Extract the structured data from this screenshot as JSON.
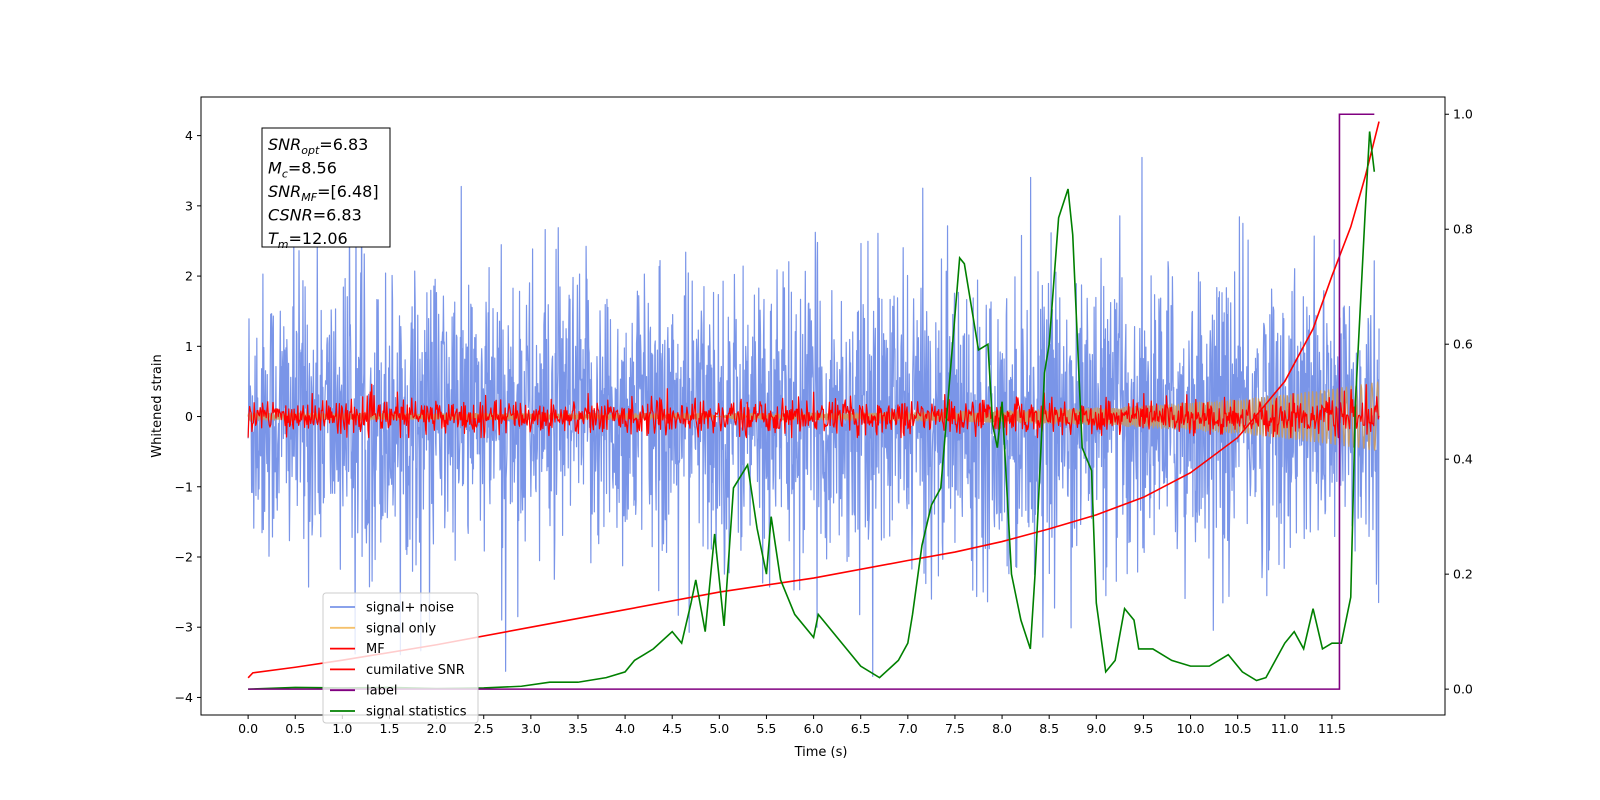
{
  "chart_data": {
    "type": "line",
    "xlabel": "Time (s)",
    "ylabel": "Whitened strain",
    "xlim": [
      -0.5,
      12.7
    ],
    "ylim": [
      -4.25,
      4.55
    ],
    "y2lim": [
      -0.045,
      1.03
    ],
    "grid": false,
    "legend_placement": "lower-left",
    "x_ticks": [
      "0.0",
      "0.5",
      "1.0",
      "1.5",
      "2.0",
      "2.5",
      "3.0",
      "3.5",
      "4.0",
      "4.5",
      "5.0",
      "5.5",
      "6.0",
      "6.5",
      "7.0",
      "7.5",
      "8.0",
      "8.5",
      "9.0",
      "9.5",
      "10.0",
      "10.5",
      "11.0",
      "11.5"
    ],
    "y_ticks": [
      "4",
      "3",
      "2",
      "1",
      "0",
      "−1",
      "−2",
      "−3",
      "−4"
    ],
    "y2_ticks": [
      "1.0",
      "0.8",
      "0.6",
      "0.4",
      "0.2",
      "0.0"
    ],
    "annotation": [
      {
        "base": "SNR",
        "sub": "opt",
        "value": "=6.83"
      },
      {
        "base": "M",
        "sub": "c",
        "value": "=8.56"
      },
      {
        "base": "SNR",
        "sub": "MF",
        "value": "=[6.48]"
      },
      {
        "base": "CSNR",
        "sub": "",
        "value": "=6.83"
      },
      {
        "base": "T",
        "sub": "m",
        "value": "=12.06"
      }
    ],
    "series": [
      {
        "name": "signal+ noise",
        "color": "#7a95e8",
        "axis": "left",
        "kind": "noise",
        "envelope": {
          "t": [
            0,
            12
          ],
          "min": -3.7,
          "max": 4.2,
          "typical_low": -1.6,
          "typical_high": 1.6
        }
      },
      {
        "name": "signal only",
        "color": "#f5c16c",
        "axis": "left",
        "kind": "chirp",
        "envelope": {
          "t": [
            0,
            12
          ],
          "amplitude_start": 0.05,
          "amplitude_end": 0.5
        }
      },
      {
        "name": "MF",
        "color": "#ff0000",
        "axis": "left",
        "kind": "noise",
        "envelope": {
          "t": [
            0,
            12
          ],
          "min": -0.3,
          "max": 0.6,
          "typical_low": -0.2,
          "typical_high": 0.2
        }
      },
      {
        "name": "cumilative SNR",
        "color": "#ff0000",
        "axis": "left",
        "x": [
          0,
          0.05,
          0.5,
          1,
          2,
          3,
          4,
          5,
          6,
          7,
          7.5,
          8,
          8.5,
          9,
          9.5,
          10,
          10.5,
          11,
          11.3,
          11.5,
          11.7,
          11.85,
          12
        ],
        "y": [
          -3.72,
          -3.65,
          -3.57,
          -3.47,
          -3.25,
          -3.0,
          -2.75,
          -2.5,
          -2.3,
          -2.05,
          -1.93,
          -1.78,
          -1.6,
          -1.4,
          -1.15,
          -0.8,
          -0.3,
          0.5,
          1.25,
          2.0,
          2.7,
          3.4,
          4.2
        ]
      },
      {
        "name": "label",
        "color": "#800080",
        "axis": "right",
        "x": [
          0,
          11.58,
          11.58,
          11.95
        ],
        "y": [
          0,
          0,
          1.0,
          1.0
        ]
      },
      {
        "name": "signal statistics",
        "color": "#008000",
        "axis": "right",
        "x": [
          0,
          0.5,
          1,
          1.5,
          2,
          2.5,
          2.9,
          3.2,
          3.5,
          3.8,
          4.0,
          4.1,
          4.2,
          4.3,
          4.5,
          4.6,
          4.7,
          4.75,
          4.85,
          4.95,
          5.05,
          5.15,
          5.3,
          5.4,
          5.5,
          5.55,
          5.65,
          5.8,
          6.0,
          6.05,
          6.1,
          6.2,
          6.3,
          6.4,
          6.5,
          6.7,
          6.9,
          7.0,
          7.05,
          7.15,
          7.25,
          7.35,
          7.45,
          7.55,
          7.6,
          7.75,
          7.85,
          7.9,
          7.95,
          8.0,
          8.05,
          8.1,
          8.2,
          8.3,
          8.35,
          8.45,
          8.5,
          8.6,
          8.7,
          8.75,
          8.85,
          8.95,
          9.0,
          9.1,
          9.2,
          9.3,
          9.4,
          9.45,
          9.5,
          9.6,
          9.8,
          10.0,
          10.2,
          10.4,
          10.55,
          10.7,
          10.8,
          10.9,
          11.0,
          11.1,
          11.2,
          11.3,
          11.4,
          11.5,
          11.6,
          11.7,
          11.75,
          11.85,
          11.9,
          11.95
        ],
        "y": [
          0,
          0.003,
          0.002,
          0.003,
          0.001,
          0.002,
          0.005,
          0.012,
          0.012,
          0.02,
          0.03,
          0.05,
          0.06,
          0.07,
          0.1,
          0.08,
          0.15,
          0.19,
          0.1,
          0.27,
          0.11,
          0.35,
          0.39,
          0.28,
          0.2,
          0.3,
          0.19,
          0.13,
          0.09,
          0.13,
          0.12,
          0.1,
          0.08,
          0.06,
          0.04,
          0.02,
          0.05,
          0.08,
          0.13,
          0.25,
          0.32,
          0.35,
          0.55,
          0.75,
          0.74,
          0.59,
          0.6,
          0.46,
          0.42,
          0.5,
          0.35,
          0.2,
          0.12,
          0.07,
          0.2,
          0.55,
          0.6,
          0.82,
          0.87,
          0.79,
          0.42,
          0.38,
          0.15,
          0.03,
          0.05,
          0.14,
          0.12,
          0.07,
          0.07,
          0.07,
          0.05,
          0.04,
          0.04,
          0.06,
          0.03,
          0.015,
          0.02,
          0.05,
          0.08,
          0.1,
          0.07,
          0.14,
          0.07,
          0.08,
          0.08,
          0.16,
          0.5,
          0.82,
          0.97,
          0.9
        ]
      }
    ]
  }
}
